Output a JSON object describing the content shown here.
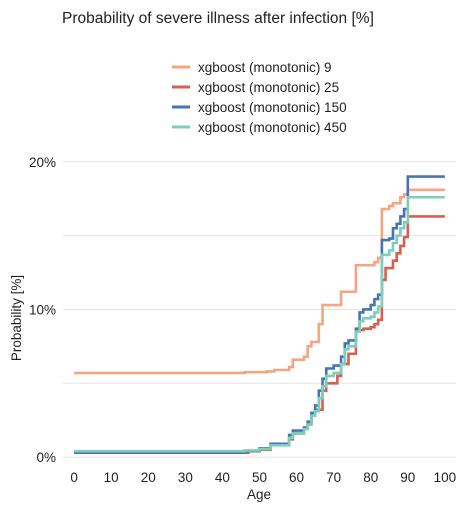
{
  "chart_data": {
    "type": "line",
    "step": true,
    "title": "Probability of severe illness after infection [%]",
    "xlabel": "Age",
    "ylabel": "Probability [%]",
    "xlim": [
      -3,
      103
    ],
    "ylim": [
      -0.4,
      20.8
    ],
    "x_ticks": [
      0,
      10,
      20,
      30,
      40,
      50,
      60,
      70,
      80,
      90,
      100
    ],
    "y_ticks": [
      0,
      10,
      20
    ],
    "y_tick_labels": [
      "0%",
      "10%",
      "20%"
    ],
    "grid": true,
    "legend_position": "top",
    "series": [
      {
        "name": "xgboost (monotonic) 9",
        "color": "#F4A582",
        "points": [
          [
            0,
            5.7
          ],
          [
            44,
            5.7
          ],
          [
            46,
            5.75
          ],
          [
            52,
            5.8
          ],
          [
            54,
            5.9
          ],
          [
            58,
            6.1
          ],
          [
            59,
            6.6
          ],
          [
            62,
            6.8
          ],
          [
            63,
            7.5
          ],
          [
            64,
            7.8
          ],
          [
            66,
            9.0
          ],
          [
            67,
            10.3
          ],
          [
            72,
            11.2
          ],
          [
            76,
            13.0
          ],
          [
            81,
            13.2
          ],
          [
            82,
            13.5
          ],
          [
            83,
            16.8
          ],
          [
            85,
            17.0
          ],
          [
            86,
            17.2
          ],
          [
            88,
            17.6
          ],
          [
            89,
            17.8
          ],
          [
            90,
            18.1
          ],
          [
            100,
            18.1
          ]
        ]
      },
      {
        "name": "xgboost (monotonic) 25",
        "color": "#D6604D",
        "points": [
          [
            0,
            0.3
          ],
          [
            45,
            0.3
          ],
          [
            47,
            0.4
          ],
          [
            50,
            0.5
          ],
          [
            53,
            0.9
          ],
          [
            58,
            1.2
          ],
          [
            59,
            1.6
          ],
          [
            62,
            2.0
          ],
          [
            63,
            2.2
          ],
          [
            64,
            2.8
          ],
          [
            65,
            3.2
          ],
          [
            67,
            4.5
          ],
          [
            68,
            5.0
          ],
          [
            71,
            5.5
          ],
          [
            72,
            6.3
          ],
          [
            74,
            7.0
          ],
          [
            76,
            8.6
          ],
          [
            78,
            8.7
          ],
          [
            80,
            8.8
          ],
          [
            81,
            9.0
          ],
          [
            82,
            9.3
          ],
          [
            83,
            12.0
          ],
          [
            84,
            12.8
          ],
          [
            86,
            13.3
          ],
          [
            87,
            13.8
          ],
          [
            88,
            14.3
          ],
          [
            89,
            14.9
          ],
          [
            90,
            16.3
          ],
          [
            100,
            16.3
          ]
        ]
      },
      {
        "name": "xgboost (monotonic) 150",
        "color": "#4575B4",
        "points": [
          [
            0,
            0.3
          ],
          [
            45,
            0.3
          ],
          [
            46,
            0.4
          ],
          [
            50,
            0.6
          ],
          [
            53,
            0.9
          ],
          [
            58,
            1.5
          ],
          [
            59,
            1.8
          ],
          [
            62,
            2.0
          ],
          [
            63,
            2.4
          ],
          [
            64,
            3.0
          ],
          [
            65,
            3.5
          ],
          [
            66,
            4.5
          ],
          [
            67,
            5.3
          ],
          [
            68,
            6.0
          ],
          [
            70,
            6.2
          ],
          [
            72,
            6.8
          ],
          [
            73,
            7.7
          ],
          [
            74,
            7.9
          ],
          [
            76,
            8.7
          ],
          [
            77,
            9.8
          ],
          [
            78,
            10.0
          ],
          [
            80,
            10.3
          ],
          [
            81,
            10.7
          ],
          [
            82,
            11.0
          ],
          [
            83,
            14.7
          ],
          [
            85,
            14.8
          ],
          [
            86,
            15.5
          ],
          [
            87,
            15.8
          ],
          [
            88,
            16.3
          ],
          [
            89,
            16.8
          ],
          [
            90,
            19.0
          ],
          [
            100,
            19.0
          ]
        ]
      },
      {
        "name": "xgboost (monotonic) 450",
        "color": "#7FCDBB",
        "points": [
          [
            0,
            0.4
          ],
          [
            45,
            0.4
          ],
          [
            46,
            0.45
          ],
          [
            50,
            0.55
          ],
          [
            53,
            0.8
          ],
          [
            58,
            1.3
          ],
          [
            59,
            1.6
          ],
          [
            62,
            1.9
          ],
          [
            63,
            2.2
          ],
          [
            64,
            2.8
          ],
          [
            65,
            3.1
          ],
          [
            66,
            4.0
          ],
          [
            67,
            4.8
          ],
          [
            68,
            5.5
          ],
          [
            70,
            5.7
          ],
          [
            72,
            6.3
          ],
          [
            73,
            7.3
          ],
          [
            74,
            7.5
          ],
          [
            76,
            8.5
          ],
          [
            77,
            9.2
          ],
          [
            78,
            9.4
          ],
          [
            80,
            9.5
          ],
          [
            81,
            9.8
          ],
          [
            82,
            10.2
          ],
          [
            83,
            13.7
          ],
          [
            85,
            14.0
          ],
          [
            86,
            14.5
          ],
          [
            87,
            15.0
          ],
          [
            88,
            15.5
          ],
          [
            89,
            15.9
          ],
          [
            90,
            17.6
          ],
          [
            100,
            17.6
          ]
        ]
      }
    ]
  }
}
